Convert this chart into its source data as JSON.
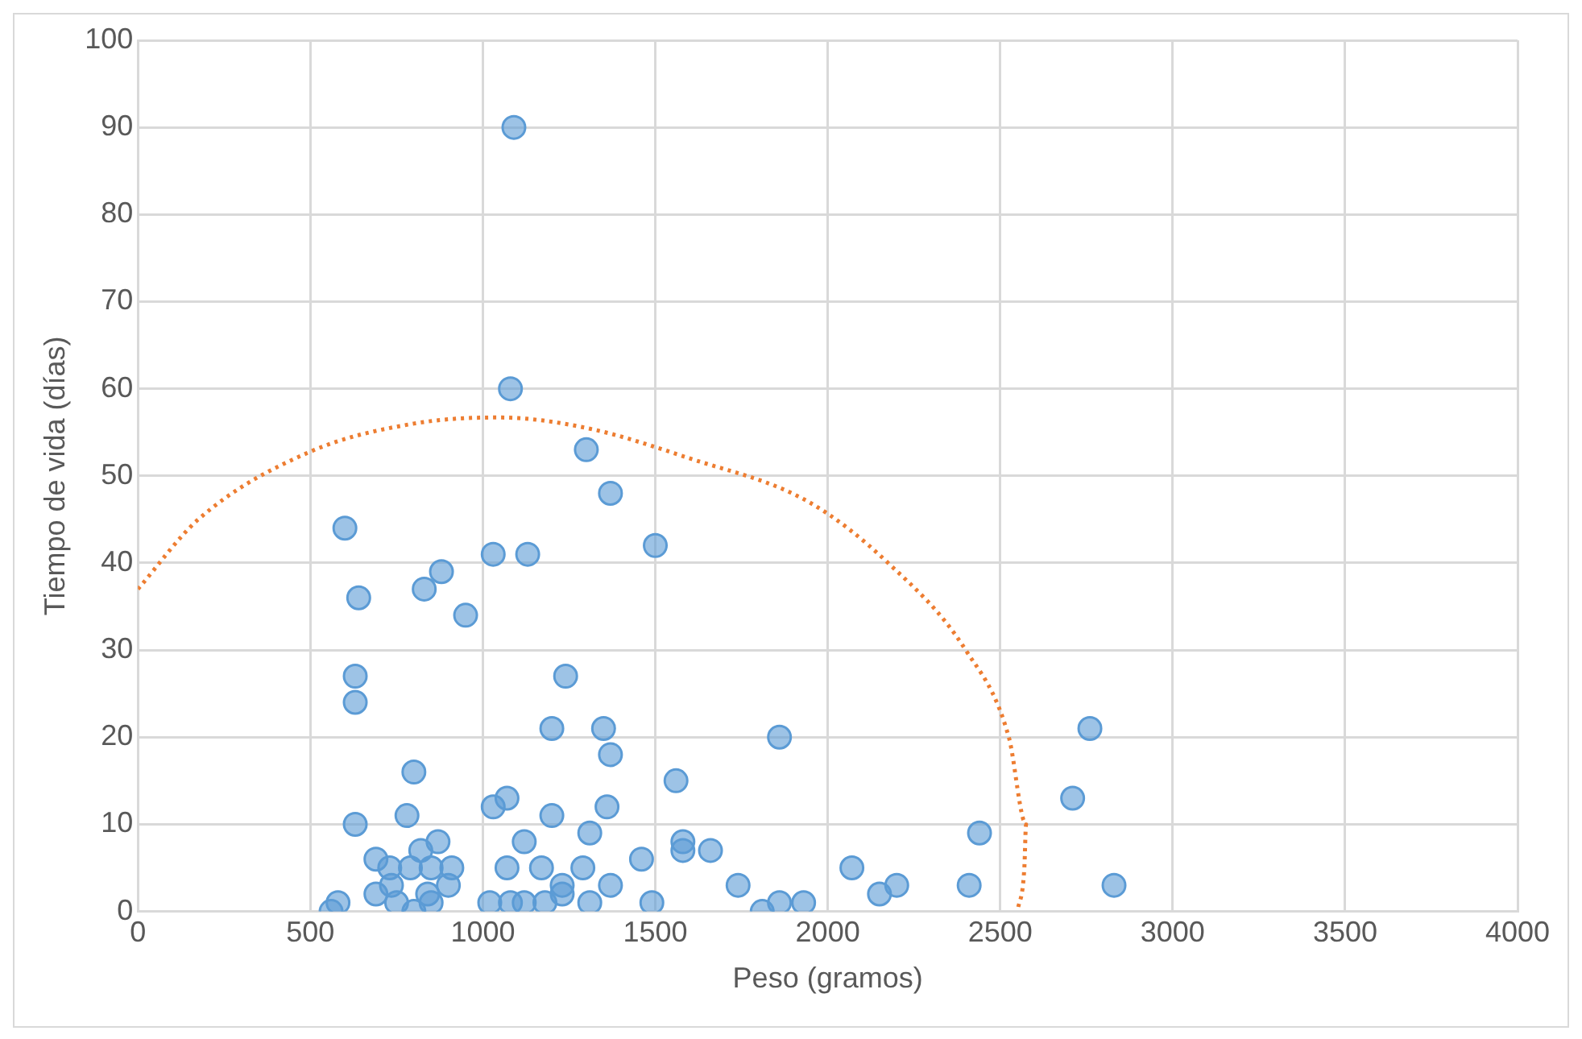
{
  "chart_data": {
    "type": "scatter",
    "xlabel": "Peso (gramos)",
    "ylabel": "Tiempo de vida (días)",
    "xlim": [
      0,
      4000
    ],
    "xticks": [
      0,
      500,
      1000,
      1500,
      2000,
      2500,
      3000,
      3500,
      4000
    ],
    "ylim": [
      0,
      100
    ],
    "yticks": [
      0,
      10,
      20,
      30,
      40,
      50,
      60,
      70,
      80,
      90,
      100
    ],
    "grid": true,
    "legend": false,
    "series": [
      {
        "color": "#5b9bd5",
        "marker": "circle",
        "x": [
          560,
          580,
          600,
          640,
          630,
          630,
          630,
          800,
          780,
          690,
          690,
          730,
          735,
          750,
          790,
          800,
          820,
          830,
          840,
          850,
          850,
          870,
          880,
          900,
          910,
          950,
          1020,
          1030,
          1030,
          1070,
          1070,
          1080,
          1080,
          1090,
          1120,
          1120,
          1130,
          1170,
          1180,
          1200,
          1200,
          1230,
          1230,
          1240,
          1290,
          1300,
          1310,
          1310,
          1350,
          1360,
          1370,
          1370,
          1370,
          1460,
          1490,
          1500,
          1560,
          1580,
          1580,
          1660,
          1740,
          1810,
          1860,
          1860,
          1930,
          2070,
          2150,
          2200,
          2410,
          2440,
          2710,
          2760,
          2830
        ],
        "values": [
          0,
          1,
          44,
          36,
          27,
          24,
          10,
          16,
          11,
          6,
          2,
          5,
          3,
          1,
          5,
          0,
          7,
          37,
          2,
          5,
          1,
          8,
          39,
          3,
          5,
          34,
          1,
          12,
          41,
          13,
          5,
          1,
          60,
          90,
          8,
          1,
          41,
          5,
          1,
          21,
          11,
          2,
          3,
          27,
          5,
          53,
          9,
          1,
          21,
          12,
          18,
          48,
          3,
          6,
          1,
          42,
          15,
          8,
          7,
          7,
          3,
          0,
          1,
          20,
          1,
          5,
          2,
          3,
          3,
          9,
          13,
          21,
          3
        ]
      },
      {
        "type": "line",
        "color": "#ed7d31",
        "line_style": "dotted",
        "marker": "none",
        "x": [
          0,
          175,
          495,
          800,
          1045,
          1300,
          1600,
          1945,
          2175,
          2400,
          2525,
          2575,
          2570,
          2550
        ],
        "values": [
          37,
          45,
          52.7,
          56,
          56.7,
          55.5,
          52,
          47,
          40,
          30,
          20,
          10,
          5,
          0
        ]
      }
    ]
  }
}
